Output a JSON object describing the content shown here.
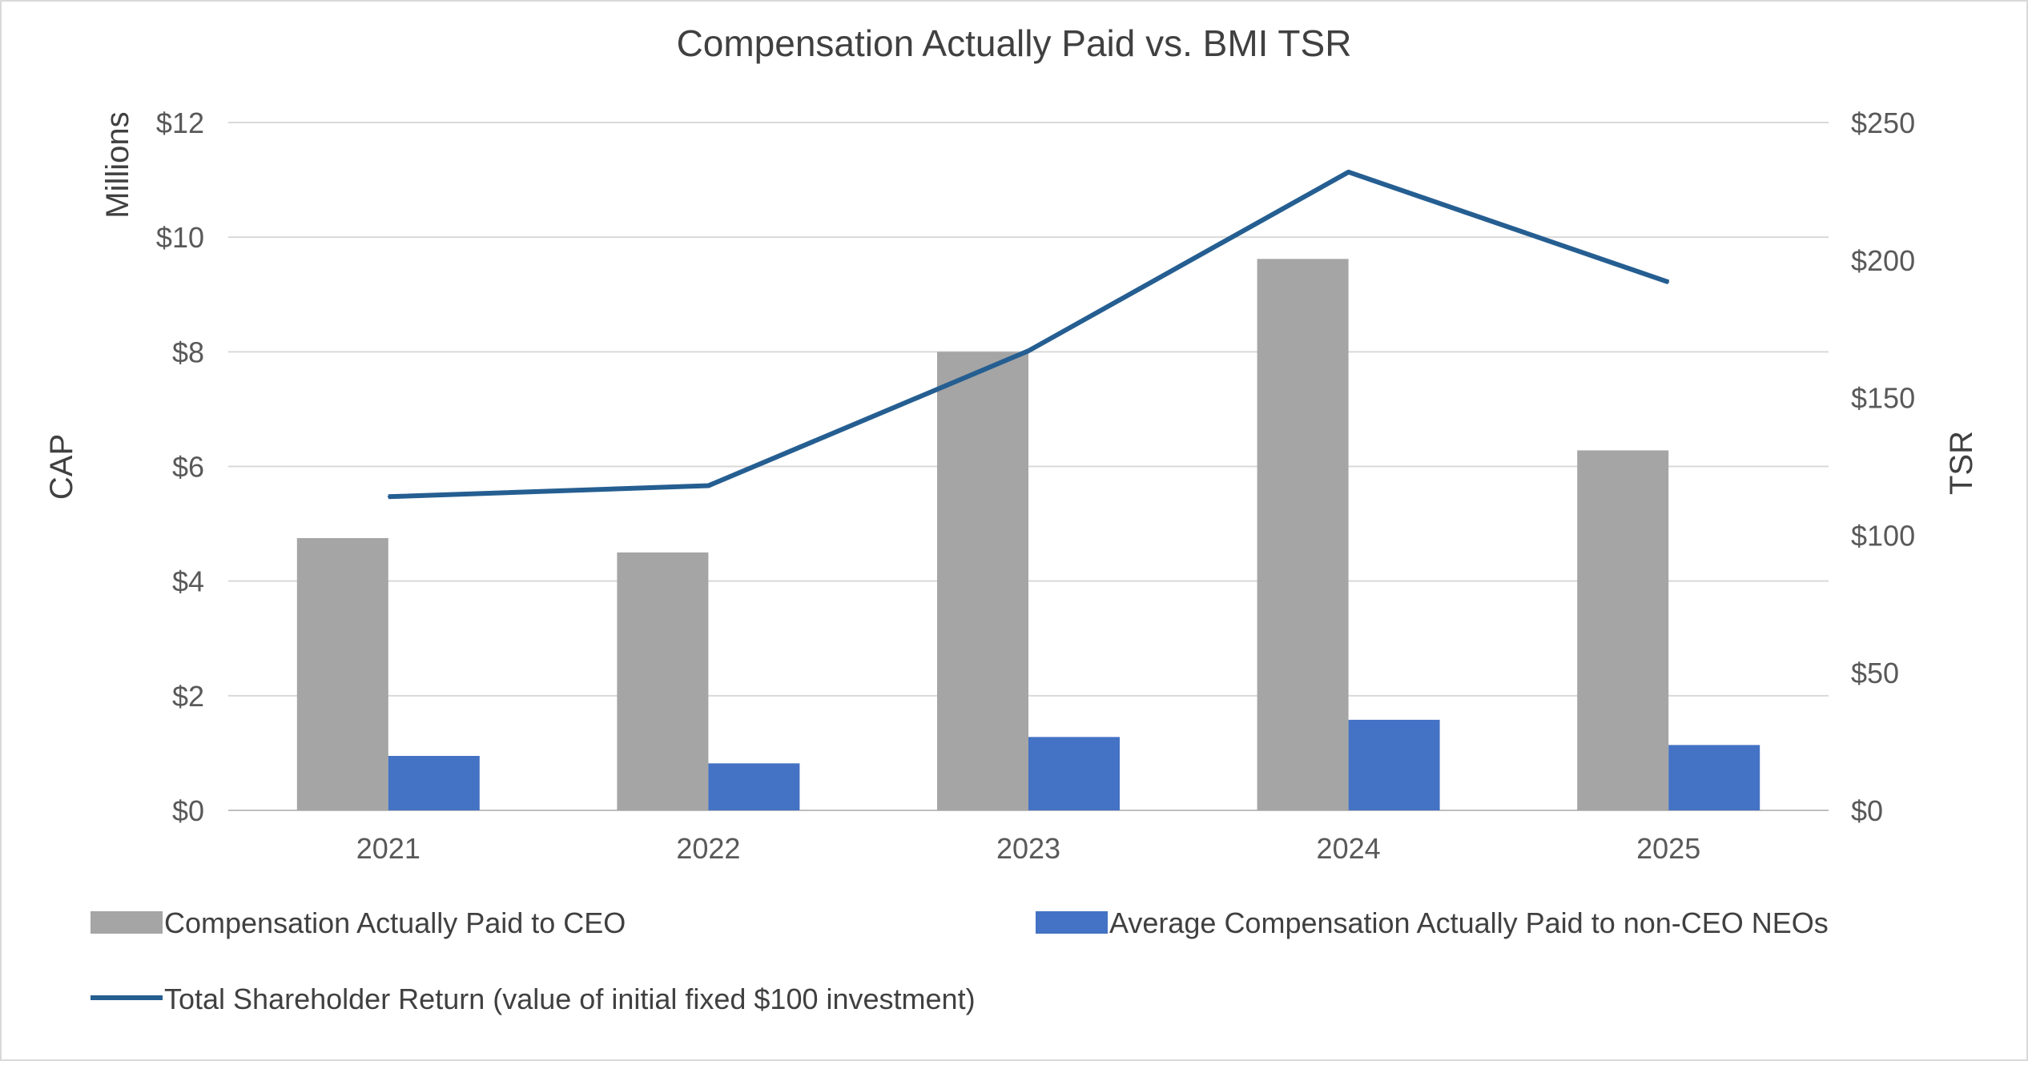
{
  "chart_data": {
    "type": "bar",
    "title": "Compensation Actually Paid vs. BMI TSR",
    "categories": [
      "2021",
      "2022",
      "2023",
      "2024",
      "2025"
    ],
    "y_left": {
      "label": "CAP",
      "unit_label": "Millions",
      "range": [
        0,
        12
      ],
      "ticks": [
        0,
        2,
        4,
        6,
        8,
        10,
        12
      ],
      "tick_labels": [
        "$0",
        "$2",
        "$4",
        "$6",
        "$8",
        "$10",
        "$12"
      ]
    },
    "y_right": {
      "label": "TSR",
      "range": [
        0,
        250
      ],
      "ticks": [
        0,
        50,
        100,
        150,
        200,
        250
      ],
      "tick_labels": [
        "$0",
        "$50",
        "$100",
        "$150",
        "$200",
        "$250"
      ]
    },
    "series": [
      {
        "name": "Compensation Actually Paid to CEO",
        "type": "bar",
        "axis": "left",
        "color": "#a5a5a5",
        "values": [
          4.75,
          4.5,
          8.0,
          9.62,
          6.28
        ]
      },
      {
        "name": "Average Compensation Actually Paid to non-CEO NEOs",
        "type": "bar",
        "axis": "left",
        "color": "#4472c4",
        "values": [
          0.95,
          0.82,
          1.28,
          1.58,
          1.14
        ]
      },
      {
        "name": "Total Shareholder Return (value of initial fixed $100 investment)",
        "type": "line",
        "axis": "right",
        "color": "#255e91",
        "values": [
          114,
          118,
          167,
          232,
          192
        ]
      }
    ],
    "grid": true,
    "legend_position": "bottom"
  }
}
